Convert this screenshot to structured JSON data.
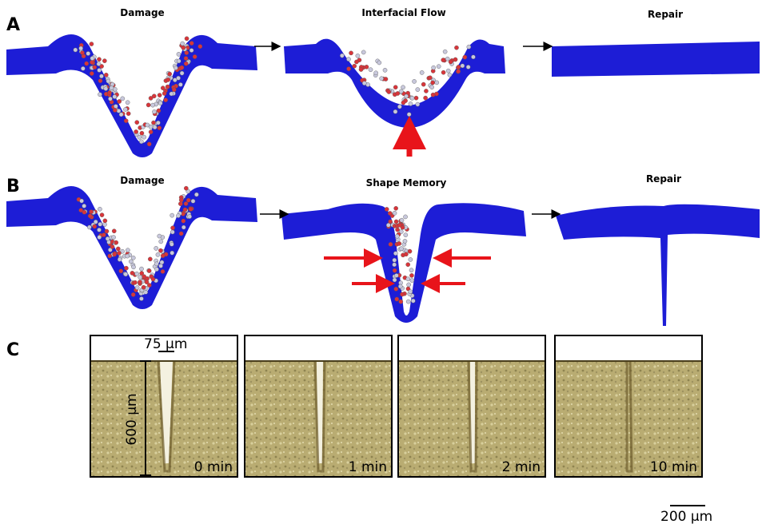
{
  "panel_a": {
    "label": "A",
    "steps": [
      "Damage",
      "Interfacial Flow",
      "Repair"
    ]
  },
  "panel_b": {
    "label": "B",
    "steps": [
      "Damage",
      "Shape Memory",
      "Repair"
    ]
  },
  "panel_c": {
    "label": "C",
    "gap_width": "75 µm",
    "depth": "600 µm",
    "times": [
      "0 min",
      "1 min",
      "2 min",
      "10 min"
    ],
    "scale_bar": "200 µm"
  }
}
